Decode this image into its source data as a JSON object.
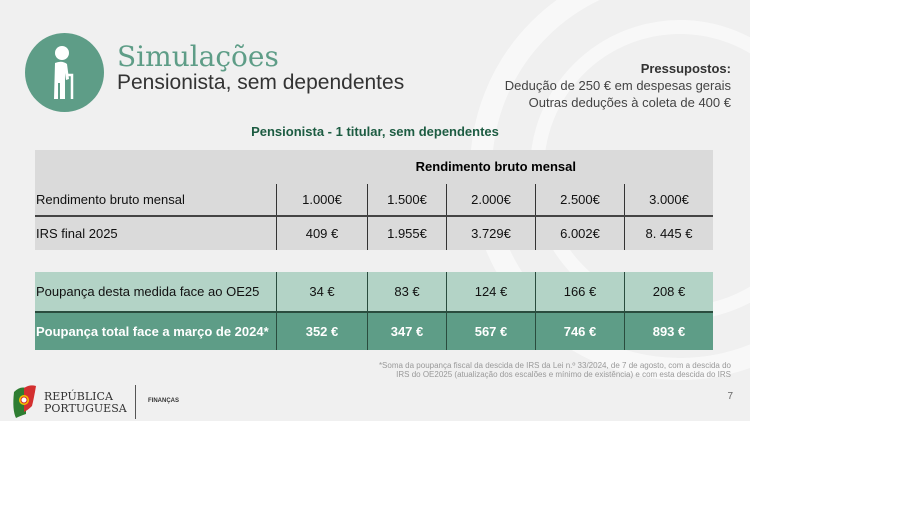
{
  "header": {
    "title": "Simulações",
    "subtitle": "Pensionista, sem dependentes",
    "icon": "elderly-person-icon",
    "accent": "#5e9d87"
  },
  "assumptions": {
    "heading": "Pressupostos:",
    "lines": [
      "Dedução de 250 € em despesas gerais",
      "Outras deduções à coleta de 400 €"
    ]
  },
  "table": {
    "title": "Pensionista - 1 titular, sem dependentes",
    "group_header": "Rendimento bruto mensal",
    "rows": [
      {
        "label": "Rendimento bruto mensal",
        "values": [
          "1.000€",
          "1.500€",
          "2.000€",
          "2.500€",
          "3.000€"
        ]
      },
      {
        "label": "IRS final 2025",
        "values": [
          "409 €",
          "1.955€",
          "3.729€",
          "6.002€",
          "8. 445 €"
        ]
      },
      {
        "label": "Poupança desta medida face ao OE25",
        "values": [
          "34 €",
          "83 €",
          "124 €",
          "166 €",
          "208 €"
        ]
      },
      {
        "label": "Poupança total face a março de 2024*",
        "values": [
          "352 €",
          "347 €",
          "567 €",
          "746 €",
          "893 €"
        ]
      }
    ]
  },
  "footnote": [
    "*Soma da poupança fiscal da descida de IRS da Lei n.º 33/2024, de 7 de agosto, com a descida do",
    "IRS do OE2025 (atualização dos escalões e mínimo de existência) e com esta descida do IRS"
  ],
  "page_number": "7",
  "footer": {
    "logo_line1": "REPÚBLICA",
    "logo_line2": "PORTUGUESA",
    "ministry": "FINANÇAS"
  }
}
